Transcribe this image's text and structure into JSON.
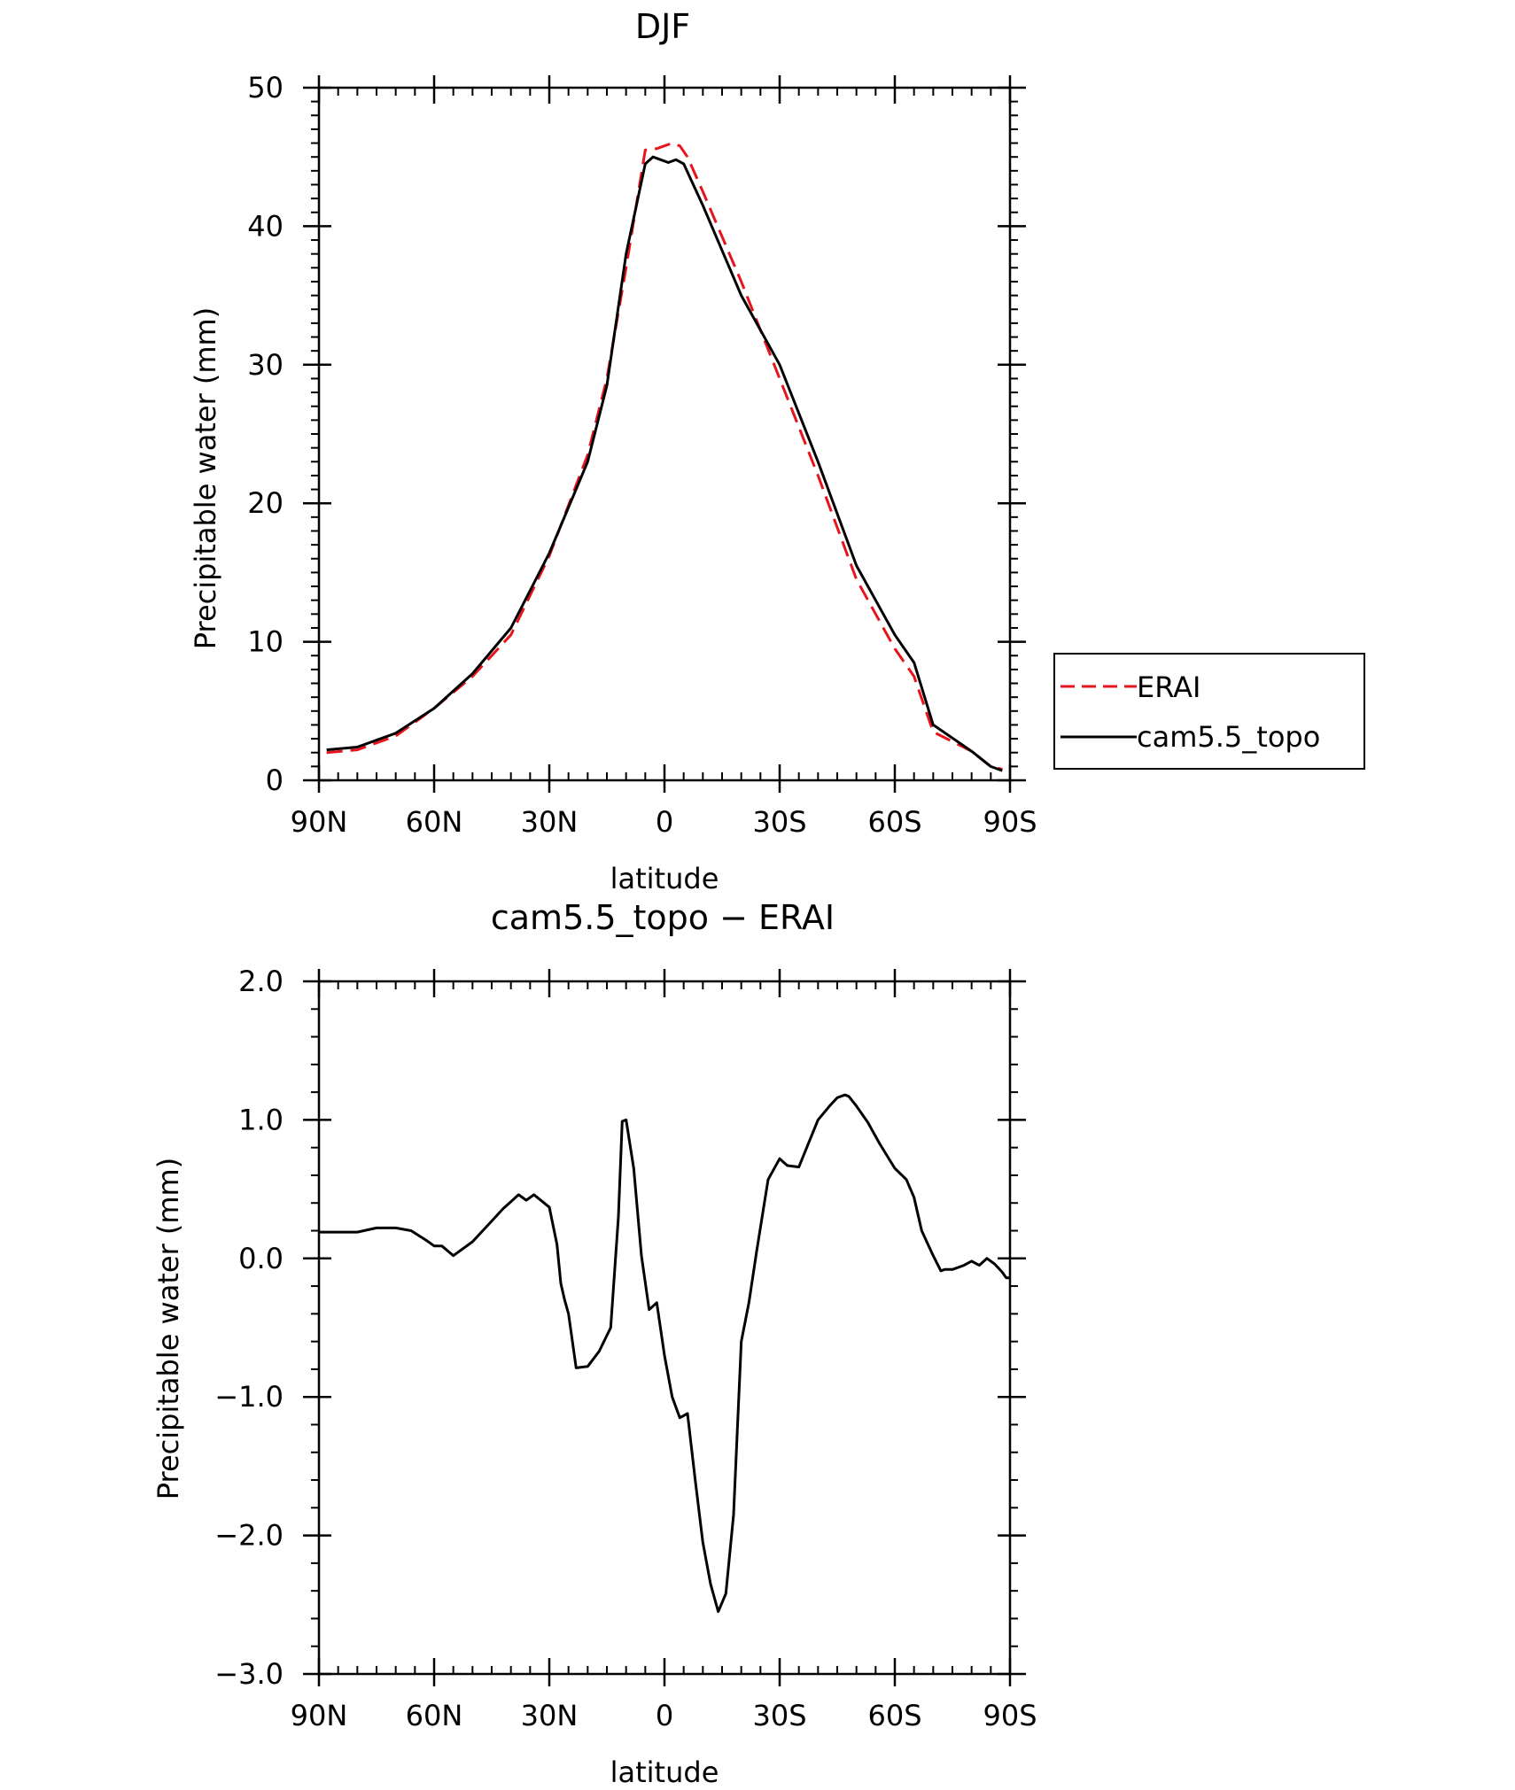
{
  "chart_data": [
    {
      "type": "line",
      "title": "DJF",
      "xlabel": "latitude",
      "ylabel": "Precipitable water (mm)",
      "xlim": [
        90,
        -90
      ],
      "ylim": [
        0,
        50
      ],
      "x_ticks": [
        {
          "value": 90,
          "label": "90N"
        },
        {
          "value": 60,
          "label": "60N"
        },
        {
          "value": 30,
          "label": "30N"
        },
        {
          "value": 0,
          "label": "0"
        },
        {
          "value": -30,
          "label": "30S"
        },
        {
          "value": -60,
          "label": "60S"
        },
        {
          "value": -90,
          "label": "90S"
        }
      ],
      "y_ticks": [
        {
          "value": 0,
          "label": "0"
        },
        {
          "value": 10,
          "label": "10"
        },
        {
          "value": 20,
          "label": "20"
        },
        {
          "value": 30,
          "label": "30"
        },
        {
          "value": 40,
          "label": "40"
        },
        {
          "value": 50,
          "label": "50"
        }
      ],
      "legend": "right",
      "grid": false,
      "series": [
        {
          "name": "ERAI",
          "color": "#e8141c",
          "dash": "dashed",
          "x": [
            88,
            80,
            70,
            60,
            50,
            40,
            30,
            20,
            15,
            10,
            5,
            2,
            0,
            -2,
            -4,
            -6,
            -10,
            -20,
            -30,
            -40,
            -50,
            -60,
            -65,
            -70,
            -80,
            -85,
            -88
          ],
          "y": [
            2.0,
            2.2,
            3.2,
            5.2,
            7.5,
            10.5,
            16.2,
            23.5,
            29.0,
            37.0,
            45.5,
            45.6,
            45.8,
            46.0,
            45.8,
            45.0,
            42.5,
            36.0,
            29.0,
            22.0,
            14.5,
            9.5,
            7.5,
            3.5,
            2.1,
            1.0,
            0.8
          ]
        },
        {
          "name": "cam5.5_topo",
          "color": "#000000",
          "dash": "solid",
          "x": [
            88,
            80,
            70,
            60,
            50,
            40,
            30,
            20,
            15,
            10,
            5,
            3,
            1,
            -1,
            -3,
            -5,
            -10,
            -20,
            -30,
            -40,
            -50,
            -60,
            -65,
            -70,
            -80,
            -85,
            -88
          ],
          "y": [
            2.2,
            2.4,
            3.4,
            5.2,
            7.7,
            11.0,
            16.4,
            23.0,
            28.5,
            38.0,
            44.5,
            45.0,
            44.8,
            44.6,
            44.8,
            44.5,
            41.5,
            35.0,
            30.0,
            23.0,
            15.5,
            10.5,
            8.5,
            4.0,
            2.1,
            1.0,
            0.7
          ]
        }
      ]
    },
    {
      "type": "line",
      "title": "cam5.5_topo − ERAI",
      "xlabel": "latitude",
      "ylabel": "Precipitable water (mm)",
      "xlim": [
        90,
        -90
      ],
      "ylim": [
        -3.0,
        2.0
      ],
      "x_ticks": [
        {
          "value": 90,
          "label": "90N"
        },
        {
          "value": 60,
          "label": "60N"
        },
        {
          "value": 30,
          "label": "30N"
        },
        {
          "value": 0,
          "label": "0"
        },
        {
          "value": -30,
          "label": "30S"
        },
        {
          "value": -60,
          "label": "60S"
        },
        {
          "value": -90,
          "label": "90S"
        }
      ],
      "y_ticks": [
        {
          "value": -3.0,
          "label": "−3.0"
        },
        {
          "value": -2.0,
          "label": "−2.0"
        },
        {
          "value": -1.0,
          "label": "−1.0"
        },
        {
          "value": 0.0,
          "label": "0.0"
        },
        {
          "value": 1.0,
          "label": "1.0"
        },
        {
          "value": 2.0,
          "label": "2.0"
        }
      ],
      "grid": false,
      "series": [
        {
          "color": "#000000",
          "dash": "solid",
          "x": [
            90,
            80,
            75,
            70,
            66,
            62,
            60,
            58,
            55,
            50,
            45,
            42,
            40,
            38,
            36,
            34,
            30,
            28,
            27,
            26,
            25,
            23,
            20,
            17,
            14,
            12,
            11,
            10,
            8,
            6,
            4,
            2,
            0,
            -2,
            -4,
            -6,
            -8,
            -10,
            -12,
            -14,
            -16,
            -18,
            -20,
            -22,
            -24,
            -27,
            -30,
            -32,
            -35,
            -40,
            -43,
            -45,
            -47,
            -48,
            -50,
            -53,
            -56,
            -60,
            -63,
            -65,
            -67,
            -70,
            -72,
            -73,
            -75,
            -78,
            -80,
            -82,
            -84,
            -86,
            -88,
            -89,
            -90
          ],
          "y": [
            0.19,
            0.19,
            0.22,
            0.22,
            0.2,
            0.13,
            0.09,
            0.09,
            0.02,
            0.12,
            0.27,
            0.36,
            0.41,
            0.46,
            0.42,
            0.46,
            0.37,
            0.1,
            -0.18,
            -0.3,
            -0.4,
            -0.79,
            -0.78,
            -0.67,
            -0.5,
            0.3,
            0.99,
            1.0,
            0.65,
            0.02,
            -0.37,
            -0.32,
            -0.7,
            -1.0,
            -1.15,
            -1.12,
            -1.6,
            -2.05,
            -2.35,
            -2.55,
            -2.42,
            -1.85,
            -0.6,
            -0.32,
            0.05,
            0.57,
            0.72,
            0.67,
            0.66,
            1.0,
            1.1,
            1.16,
            1.18,
            1.17,
            1.1,
            0.98,
            0.83,
            0.65,
            0.57,
            0.44,
            0.2,
            0.02,
            -0.09,
            -0.08,
            -0.08,
            -0.05,
            -0.02,
            -0.05,
            0.0,
            -0.04,
            -0.1,
            -0.14,
            -0.14
          ]
        }
      ]
    }
  ]
}
